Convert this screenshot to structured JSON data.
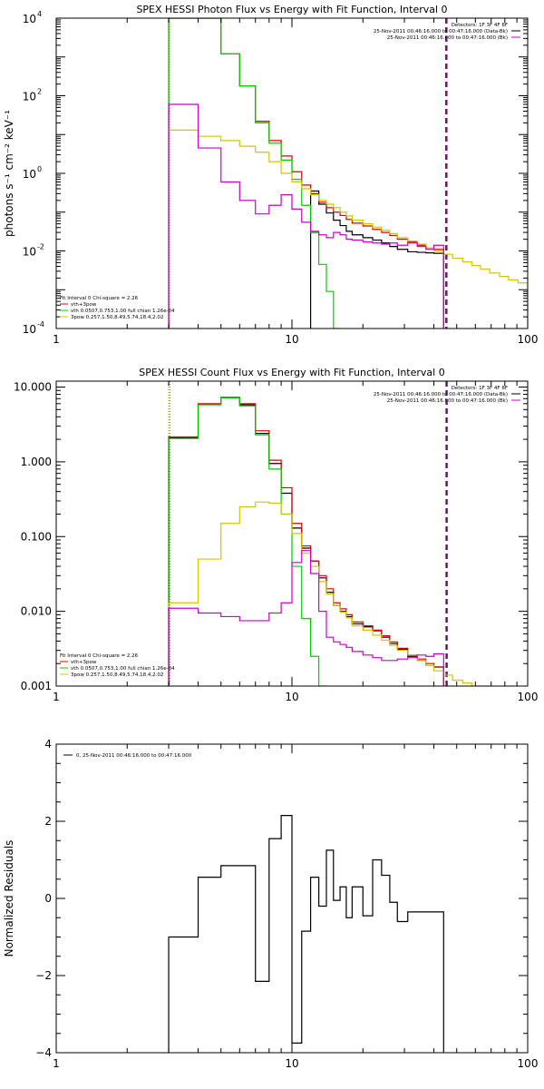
{
  "chart_data": [
    {
      "type": "line",
      "title": "SPEX HESSI Photon Flux vs Energy with Fit Function, Interval 0",
      "ylabel": "photons s⁻¹ cm⁻² keV⁻¹",
      "xlabel": "",
      "xscale": "log",
      "yscale": "log",
      "xlim": [
        1,
        100
      ],
      "ylim": [
        0.0001,
        10000
      ],
      "xticks": [
        1,
        10,
        100
      ],
      "xtick_labels": [
        "1",
        "10",
        "100"
      ],
      "yticks": [
        0.0001,
        0.01,
        1,
        100,
        10000
      ],
      "ytick_labels": [
        [
          "10",
          "-4"
        ],
        [
          "10",
          "-2"
        ],
        [
          "10",
          "0"
        ],
        [
          "10",
          "2"
        ],
        [
          "10",
          "4"
        ]
      ],
      "grid": false,
      "legend_top_right": [
        "Detectors: 1F 3F 4F 8F",
        "25-Nov-2011 00:46:16.000 to 00:47:16.000 (Data-Bk)",
        "25-Nov-2011 00:46:16.000 to 00:47:16.000 (Bk)"
      ],
      "legend_bottom_left": [
        "Fit Interval 0   Chi-square = 2.26",
        "vth+3pow",
        "vth 0.0507,0.753,1.00   full chian 1.26e-04",
        "3pow 0.257,1.50,8.49,5.74,18.4,2.02"
      ],
      "vlines": [
        {
          "x": 3.0,
          "color": "#00cc00",
          "style": "dotted"
        },
        {
          "x": 3.0,
          "color": "#d4c400",
          "style": "dotted"
        },
        {
          "x": 45,
          "color": "#000000",
          "style": "dashed"
        },
        {
          "x": 45,
          "color": "#cc00cc",
          "style": "dashed"
        }
      ],
      "bin_edges": [
        3,
        4,
        5,
        6,
        7,
        8,
        9,
        10,
        11,
        12,
        13,
        14,
        15,
        16,
        17,
        18,
        20,
        22,
        24,
        26,
        28,
        31,
        34,
        37,
        40,
        44,
        48,
        53,
        58,
        63,
        69,
        76,
        83,
        91,
        100
      ],
      "series": [
        {
          "name": "Data-Bk",
          "color": "#000000",
          "start_bin": 9,
          "end_bin": 25,
          "values": [
            0.35,
            0.16,
            0.095,
            0.062,
            0.045,
            0.032,
            0.026,
            0.022,
            0.019,
            0.016,
            0.013,
            0.011,
            0.0095,
            0.0092,
            0.0089,
            0.0087
          ]
        },
        {
          "name": "vth+3pow",
          "color": "#dd0000",
          "start_bin": 0,
          "end_bin": 25,
          "values": [
            20000,
            20000,
            1200,
            180,
            22,
            7,
            2.8,
            1.1,
            0.5,
            0.3,
            0.18,
            0.13,
            0.1,
            0.082,
            0.065,
            0.052,
            0.044,
            0.036,
            0.03,
            0.025,
            0.02,
            0.017,
            0.014,
            0.012,
            0.011
          ]
        },
        {
          "name": "vth",
          "color": "#00cc00",
          "start_bin": 0,
          "end_bin": 13,
          "values": [
            20000,
            20000,
            1200,
            180,
            20,
            6,
            2.2,
            0.7,
            0.15,
            0.03,
            0.0045,
            0.0009,
            0.0001
          ]
        },
        {
          "name": "3pow",
          "color": "#d4c400",
          "start_bin": 0,
          "end_bin": 34,
          "values": [
            13,
            9,
            7,
            5,
            3.5,
            2,
            1,
            0.6,
            0.4,
            0.28,
            0.2,
            0.16,
            0.13,
            0.1,
            0.08,
            0.062,
            0.05,
            0.041,
            0.034,
            0.028,
            0.022,
            0.018,
            0.015,
            0.012,
            0.01,
            0.0082,
            0.0065,
            0.0052,
            0.0042,
            0.0034,
            0.0027,
            0.0022,
            0.0018,
            0.0015
          ]
        },
        {
          "name": "Bk",
          "color": "#cc00cc",
          "start_bin": 0,
          "end_bin": 25,
          "values": [
            60,
            4.5,
            0.6,
            0.2,
            0.09,
            0.15,
            0.28,
            0.12,
            0.055,
            0.032,
            0.026,
            0.022,
            0.03,
            0.026,
            0.02,
            0.019,
            0.017,
            0.016,
            0.015,
            0.016,
            0.014,
            0.016,
            0.013,
            0.011,
            0.014
          ]
        }
      ]
    },
    {
      "type": "line",
      "title": "SPEX HESSI Count Flux vs Energy with Fit Function, Interval 0",
      "xlabel": "",
      "ylabel": "",
      "xscale": "log",
      "yscale": "log",
      "xlim": [
        1,
        100
      ],
      "ylim": [
        0.001,
        12
      ],
      "xticks": [
        1,
        10,
        100
      ],
      "xtick_labels": [
        "1",
        "10",
        "100"
      ],
      "yticks": [
        0.001,
        0.01,
        0.1,
        1,
        10
      ],
      "ytick_labels": [
        "0.001",
        "0.010",
        "0.100",
        "1.000",
        "10.000"
      ],
      "grid": false,
      "legend_top_right": [
        "Detectors: 1F 3F 4F 8F",
        "25-Nov-2011 00:46:16.000 to 00:47:16.000 (Data-Bk)",
        "25-Nov-2011 00:46:16.000 to 00:47:16.000 (Bk)"
      ],
      "legend_bottom_left": [
        "Fit Interval 0   Chi-square = 2.26",
        "vth+3pow",
        "vth 0.0507,0.753,1.00   full chian 1.26e-04",
        "3pow 0.257,1.50,8.49,5.74,18.4,2.02"
      ],
      "vlines": [
        {
          "x": 3.0,
          "color": "#000000",
          "style": "dotted"
        },
        {
          "x": 3.0,
          "color": "#00cc00",
          "style": "dotted"
        },
        {
          "x": 3.0,
          "color": "#d4c400",
          "style": "dotted"
        },
        {
          "x": 45,
          "color": "#000000",
          "style": "dashed"
        },
        {
          "x": 45,
          "color": "#cc00cc",
          "style": "dashed"
        }
      ],
      "bin_edges": [
        3,
        4,
        5,
        6,
        7,
        8,
        9,
        10,
        11,
        12,
        13,
        14,
        15,
        16,
        17,
        18,
        20,
        22,
        24,
        26,
        28,
        31,
        34,
        37,
        40,
        44,
        48,
        53,
        58,
        63,
        69
      ],
      "series": [
        {
          "name": "Data-Bk",
          "color": "#000000",
          "start_bin": 0,
          "end_bin": 25,
          "values": [
            2.1,
            5.9,
            7.2,
            5.8,
            2.4,
            0.95,
            0.38,
            0.13,
            0.07,
            0.047,
            0.028,
            0.018,
            0.012,
            0.01,
            0.0085,
            0.0068,
            0.0062,
            0.0055,
            0.0045,
            0.0037,
            0.0031,
            0.0025,
            0.0022,
            0.0019,
            0.0018
          ]
        },
        {
          "name": "vth+3pow",
          "color": "#dd0000",
          "start_bin": 0,
          "end_bin": 25,
          "values": [
            2.15,
            6,
            7.3,
            6,
            2.6,
            1.05,
            0.45,
            0.15,
            0.075,
            0.047,
            0.03,
            0.02,
            0.013,
            0.0108,
            0.009,
            0.0072,
            0.0064,
            0.0056,
            0.0047,
            0.0039,
            0.0032,
            0.0026,
            0.0023,
            0.002,
            0.0018
          ]
        },
        {
          "name": "vth",
          "color": "#00cc00",
          "start_bin": 0,
          "end_bin": 11,
          "values": [
            2.05,
            5.8,
            7.2,
            5.6,
            2.3,
            0.8,
            0.2,
            0.04,
            0.008,
            0.0025,
            0.001
          ]
        },
        {
          "name": "3pow",
          "color": "#d4c400",
          "start_bin": 0,
          "end_bin": 30,
          "values": [
            0.013,
            0.05,
            0.15,
            0.25,
            0.29,
            0.28,
            0.2,
            0.11,
            0.06,
            0.04,
            0.025,
            0.017,
            0.012,
            0.0098,
            0.0082,
            0.0064,
            0.0056,
            0.0048,
            0.0041,
            0.0035,
            0.003,
            0.0026,
            0.0022,
            0.0019,
            0.0016,
            0.0014,
            0.0012,
            0.0011,
            0.001,
            0.0009
          ]
        },
        {
          "name": "Bk",
          "color": "#cc00cc",
          "start_bin": 0,
          "end_bin": 25,
          "values": [
            0.011,
            0.0095,
            0.0085,
            0.0075,
            0.0075,
            0.0095,
            0.013,
            0.045,
            0.065,
            0.032,
            0.01,
            0.0045,
            0.0039,
            0.0036,
            0.0033,
            0.0029,
            0.0026,
            0.0024,
            0.0022,
            0.0022,
            0.0023,
            0.0024,
            0.0026,
            0.0025,
            0.0027
          ]
        }
      ]
    },
    {
      "type": "line",
      "title": "",
      "xlabel": "",
      "ylabel": "Normalized Residuals",
      "xscale": "log",
      "yscale": "linear",
      "xlim": [
        1,
        100
      ],
      "ylim": [
        -4,
        4
      ],
      "xticks": [
        1,
        10,
        100
      ],
      "xtick_labels": [
        "1",
        "10",
        "100"
      ],
      "yticks": [
        -4,
        -2,
        0,
        2,
        4
      ],
      "ytick_labels": [
        "−4",
        "−2",
        "0",
        "2",
        "4"
      ],
      "grid": false,
      "legend_top_left": [
        "0, 25-Nov-2011 00:46:16.000 to 00:47:16.000"
      ],
      "bin_edges": [
        3,
        4,
        5,
        6,
        7,
        7.5,
        8,
        9,
        10,
        10.5,
        11,
        12,
        13,
        14,
        15,
        16,
        17,
        18,
        20,
        22,
        24,
        26,
        28,
        31,
        34,
        37,
        40,
        44
      ],
      "series": [
        {
          "name": "",
          "color": "#000000",
          "start_bin": 0,
          "end_bin": 27,
          "values": [
            -1.0,
            0.55,
            0.85,
            0.85,
            -2.15,
            -2.15,
            1.55,
            2.15,
            -3.75,
            -3.75,
            -0.85,
            0.55,
            -0.2,
            1.25,
            -0.05,
            0.3,
            -0.5,
            0.3,
            -0.45,
            1.0,
            0.6,
            -0.1,
            -0.6,
            -0.35,
            -0.35,
            -0.35,
            -0.35
          ]
        }
      ]
    }
  ]
}
